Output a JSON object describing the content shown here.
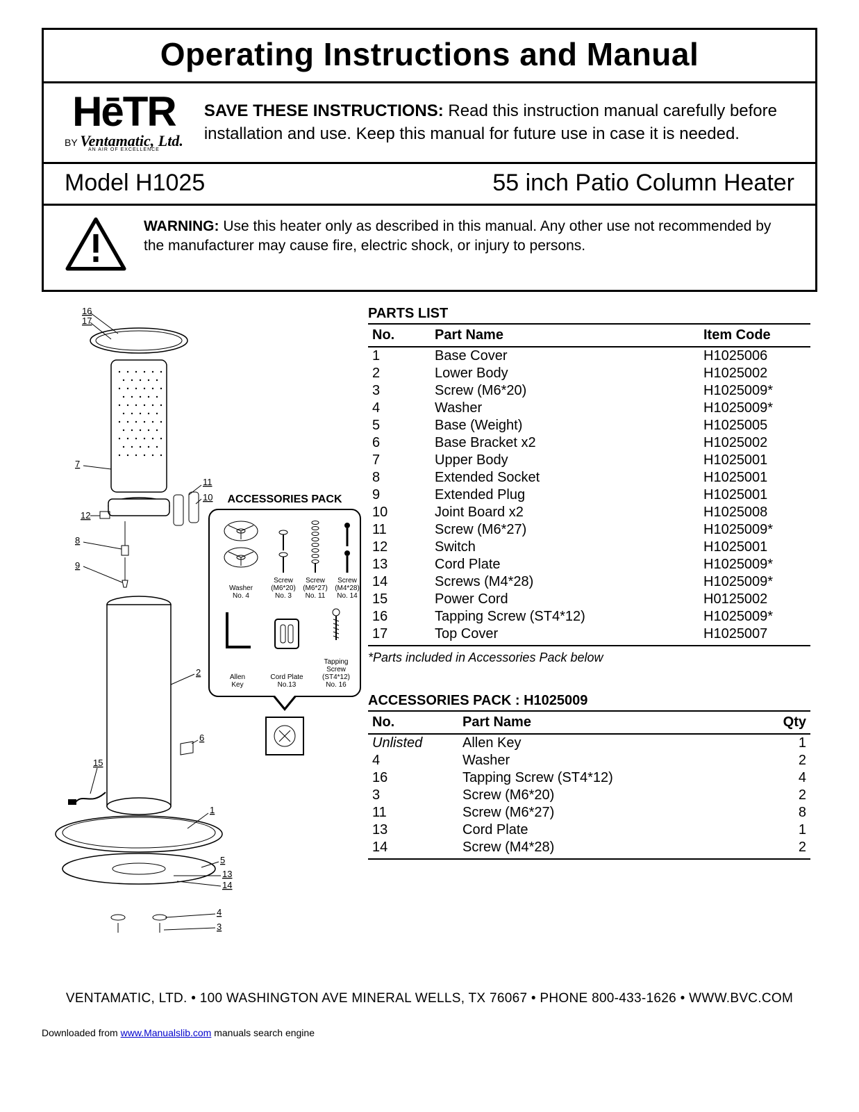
{
  "header": {
    "title": "Operating Instructions and Manual",
    "logo_main": "HēTR",
    "logo_by": "BY",
    "logo_sub": "Ventamatic, Ltd.",
    "logo_tag": "AN AIR OF EXCELLENCE",
    "save_bold": "SAVE THESE INSTRUCTIONS:",
    "save_rest": " Read this instruction manual carefully before installation and use. Keep this manual for future use in case it is needed."
  },
  "model_row": {
    "model": "Model H1025",
    "product": "55 inch Patio Column Heater"
  },
  "warning": {
    "label": "WARNING:",
    "text": "  Use this heater only as described in this manual. Any other use not recommended by the manufacturer may cause fire, electric shock, or injury to persons."
  },
  "parts": {
    "heading": "PARTS LIST",
    "cols": {
      "no": "No.",
      "name": "Part Name",
      "code": "Item Code"
    },
    "rows": [
      {
        "no": "1",
        "name": "Base Cover",
        "code": "H1025006"
      },
      {
        "no": "2",
        "name": "Lower Body",
        "code": "H1025002"
      },
      {
        "no": "3",
        "name": "Screw (M6*20)",
        "code": "H1025009*"
      },
      {
        "no": "4",
        "name": "Washer",
        "code": "H1025009*"
      },
      {
        "no": "5",
        "name": "Base (Weight)",
        "code": "H1025005"
      },
      {
        "no": "6",
        "name": "Base Bracket x2",
        "code": "H1025002"
      },
      {
        "no": "7",
        "name": "Upper Body",
        "code": "H1025001"
      },
      {
        "no": "8",
        "name": "Extended Socket",
        "code": "H1025001"
      },
      {
        "no": "9",
        "name": "Extended Plug",
        "code": "H1025001"
      },
      {
        "no": "10",
        "name": "Joint Board x2",
        "code": "H1025008"
      },
      {
        "no": "11",
        "name": "Screw (M6*27)",
        "code": "H1025009*"
      },
      {
        "no": "12",
        "name": "Switch",
        "code": "H1025001"
      },
      {
        "no": "13",
        "name": "Cord Plate",
        "code": "H1025009*"
      },
      {
        "no": "14",
        "name": "Screws (M4*28)",
        "code": "H1025009*"
      },
      {
        "no": "15",
        "name": "Power Cord",
        "code": "H0125002"
      },
      {
        "no": "16",
        "name": "Tapping Screw (ST4*12)",
        "code": "H1025009*"
      },
      {
        "no": "17",
        "name": "Top Cover",
        "code": "H1025007"
      }
    ],
    "note": "*Parts included in Accessories Pack below"
  },
  "accessories": {
    "heading": "ACCESSORIES PACK  :   H1025009",
    "cols": {
      "no": "No.",
      "name": "Part Name",
      "qty": "Qty"
    },
    "rows": [
      {
        "no": "Unlisted",
        "name": "Allen Key",
        "qty": "1",
        "italic": true
      },
      {
        "no": "4",
        "name": "Washer",
        "qty": "2"
      },
      {
        "no": "16",
        "name": "Tapping Screw (ST4*12)",
        "qty": "4"
      },
      {
        "no": "3",
        "name": "Screw (M6*20)",
        "qty": "2"
      },
      {
        "no": "11",
        "name": "Screw (M6*27)",
        "qty": "8"
      },
      {
        "no": "13",
        "name": "Cord Plate",
        "qty": "1"
      },
      {
        "no": "14",
        "name": "Screw (M4*28)",
        "qty": "2"
      }
    ]
  },
  "acc_pack_box": {
    "title": "ACCESSORIES PACK",
    "items_row1": [
      {
        "label": "Washer\nNo. 4"
      },
      {
        "label": "Screw\n(M6*20)\nNo. 3"
      },
      {
        "label": "Screw\n(M6*27)\nNo. 11"
      },
      {
        "label": "Screw\n(M4*28)\nNo. 14"
      }
    ],
    "items_row2": [
      {
        "label": "Allen\nKey"
      },
      {
        "label": "Cord Plate\nNo.13"
      },
      {
        "label": "Tapping\nScrew\n(ST4*12)\nNo. 16"
      }
    ]
  },
  "footer": "VENTAMATIC, LTD. • 100 WASHINGTON AVE   MINERAL WELLS, TX 76067 • PHONE 800-433-1626 • WWW.BVC.COM",
  "download": {
    "pre": "Downloaded from ",
    "link": "www.Manualslib.com",
    "post": " manuals search engine"
  },
  "callouts": [
    "1",
    "2",
    "3",
    "4",
    "5",
    "6",
    "7",
    "8",
    "9",
    "10",
    "11",
    "12",
    "13",
    "14",
    "15",
    "16",
    "17"
  ]
}
